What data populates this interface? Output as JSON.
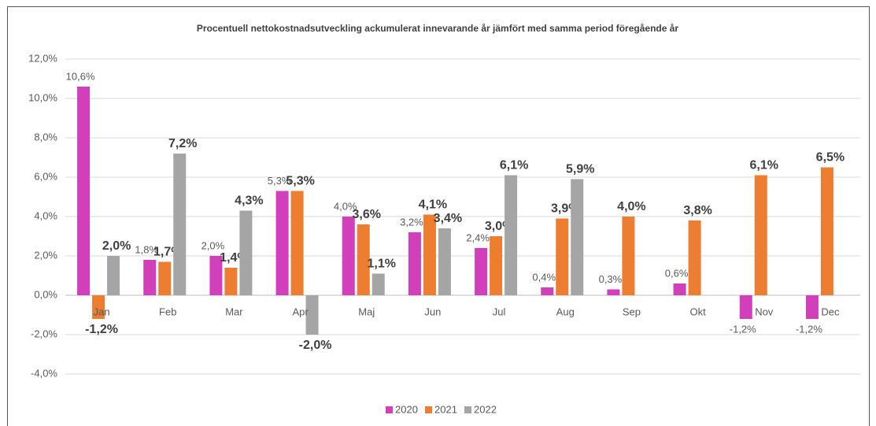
{
  "chart_data": {
    "type": "bar",
    "title": "Procentuell nettokostnadsutveckling ackumulerat innevarande år jämfört med samma period föregående år",
    "categories": [
      "Jan",
      "Feb",
      "Mar",
      "Apr",
      "Maj",
      "Jun",
      "Jul",
      "Aug",
      "Sep",
      "Okt",
      "Nov",
      "Dec"
    ],
    "series": [
      {
        "name": "2020",
        "color": "#d23fba",
        "values": [
          10.6,
          1.8,
          2.0,
          5.3,
          4.0,
          3.2,
          2.4,
          0.4,
          0.3,
          0.6,
          -1.2,
          -1.2
        ],
        "value_labels": [
          "10,6%",
          "1,8%",
          "2,0%",
          "5,3%",
          "4,0%",
          "3,2%",
          "2,4%",
          "0,4%",
          "0,3%",
          "0,6%",
          "-1,2%",
          "-1,2%"
        ]
      },
      {
        "name": "2021",
        "color": "#ed7d31",
        "values": [
          -1.2,
          1.7,
          1.4,
          5.3,
          3.6,
          4.1,
          3.0,
          3.9,
          4.0,
          3.8,
          6.1,
          6.5
        ],
        "value_labels": [
          "-1,2%",
          "1,7%",
          "1,4%",
          "5,3%",
          "3,6%",
          "4,1%",
          "3,0%",
          "3,9%",
          "4,0%",
          "3,8%",
          "6,1%",
          "6,5%"
        ]
      },
      {
        "name": "2022",
        "color": "#a5a5a5",
        "values": [
          2.0,
          7.2,
          4.3,
          -2.0,
          1.1,
          3.4,
          6.1,
          5.9,
          null,
          null,
          null,
          null
        ],
        "value_labels": [
          "2,0%",
          "7,2%",
          "4,3%",
          "-2,0%",
          "1,1%",
          "3,4%",
          "6,1%",
          "5,9%",
          null,
          null,
          null,
          null
        ]
      }
    ],
    "ylim": [
      -4,
      12
    ],
    "yticks": [
      {
        "value": -4,
        "label": "-4,0%"
      },
      {
        "value": -2,
        "label": "-2,0%"
      },
      {
        "value": 0,
        "label": "0,0%"
      },
      {
        "value": 2,
        "label": "2,0%"
      },
      {
        "value": 4,
        "label": "4,0%"
      },
      {
        "value": 6,
        "label": "6,0%"
      },
      {
        "value": 8,
        "label": "8,0%"
      },
      {
        "value": 10,
        "label": "10,0%"
      },
      {
        "value": 12,
        "label": "12,0%"
      }
    ],
    "grid": true,
    "legend": "bottom"
  }
}
